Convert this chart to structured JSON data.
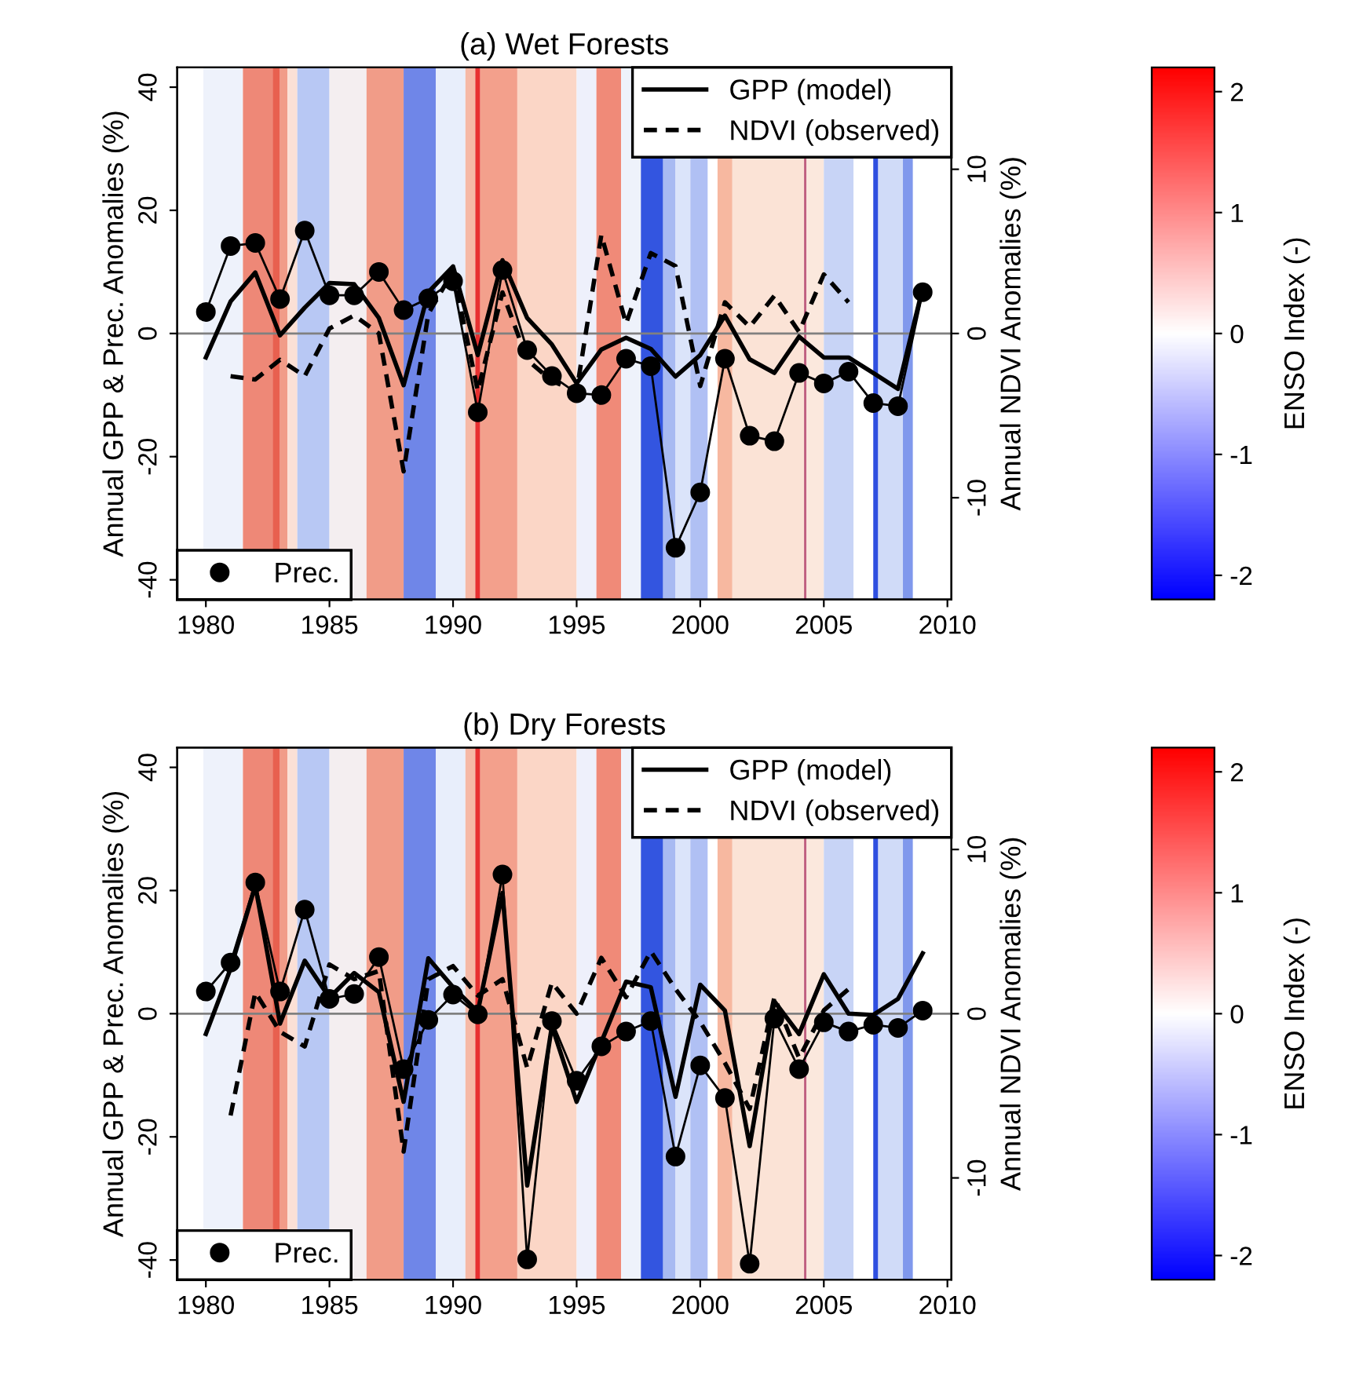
{
  "chart_data": [
    {
      "type": "line",
      "title": "(a) Wet Forests",
      "ylabel": "Annual GPP & Prec. Anomalies (%)",
      "y2label": "Annual NDVI Anomalies (%)",
      "clabel": "ENSO Index (-)",
      "xlim": [
        1978.84,
        2010.16
      ],
      "xticks": [
        1980,
        1985,
        1990,
        1995,
        2000,
        2005,
        2010
      ],
      "ylim": [
        -43.2,
        43.2
      ],
      "yticks": [
        -40,
        -20,
        0,
        20,
        40
      ],
      "y2lim": [
        -16.2,
        16.2
      ],
      "y2ticks": [
        -10,
        0,
        10
      ],
      "clim": [
        -2.2,
        2.2
      ],
      "cticks": [
        -2,
        -1,
        0,
        1,
        2
      ],
      "legend": "top right",
      "grid": false,
      "ref_lines": [
        {
          "axis": "y",
          "value": 0,
          "color": "#808080"
        }
      ],
      "bands": [
        {
          "axis": "x",
          "from": 1979.9,
          "to": 1981.5,
          "color": "#eef2fb"
        },
        {
          "axis": "x",
          "from": 1981.5,
          "to": 1982.7,
          "color": "#ee8877"
        },
        {
          "axis": "x",
          "from": 1982.7,
          "to": 1983.0,
          "color": "#e8604f"
        },
        {
          "axis": "x",
          "from": 1983.0,
          "to": 1983.3,
          "color": "#f19c88"
        },
        {
          "axis": "x",
          "from": 1983.3,
          "to": 1983.7,
          "color": "#fbe0d6"
        },
        {
          "axis": "x",
          "from": 1983.7,
          "to": 1985.0,
          "color": "#b8c8f4"
        },
        {
          "axis": "x",
          "from": 1985.0,
          "to": 1986.5,
          "color": "#f4eef0"
        },
        {
          "axis": "x",
          "from": 1986.5,
          "to": 1988.0,
          "color": "#f19c88"
        },
        {
          "axis": "x",
          "from": 1988.0,
          "to": 1989.3,
          "color": "#6f86e8"
        },
        {
          "axis": "x",
          "from": 1989.3,
          "to": 1990.5,
          "color": "#e8eefb"
        },
        {
          "axis": "x",
          "from": 1990.5,
          "to": 1990.9,
          "color": "#f6b9a6"
        },
        {
          "axis": "x",
          "from": 1990.9,
          "to": 1991.1,
          "color": "#e83030"
        },
        {
          "axis": "x",
          "from": 1991.1,
          "to": 1992.6,
          "color": "#f3a08c"
        },
        {
          "axis": "x",
          "from": 1992.6,
          "to": 1995.0,
          "color": "#fbd6c6"
        },
        {
          "axis": "x",
          "from": 1995.0,
          "to": 1995.8,
          "color": "#eef0fb"
        },
        {
          "axis": "x",
          "from": 1995.8,
          "to": 1996.8,
          "color": "#f08a78"
        },
        {
          "axis": "x",
          "from": 1996.8,
          "to": 1997.6,
          "color": "#eef2fb"
        },
        {
          "axis": "x",
          "from": 1997.6,
          "to": 1998.5,
          "color": "#3355e0"
        },
        {
          "axis": "x",
          "from": 1998.5,
          "to": 1999.0,
          "color": "#a8baf2"
        },
        {
          "axis": "x",
          "from": 1999.0,
          "to": 1999.6,
          "color": "#dbe4fa"
        },
        {
          "axis": "x",
          "from": 1999.6,
          "to": 2000.3,
          "color": "#b0c0f4"
        },
        {
          "axis": "x",
          "from": 2000.7,
          "to": 2001.3,
          "color": "#f7b8a0"
        },
        {
          "axis": "x",
          "from": 2001.3,
          "to": 2004.2,
          "color": "#fbe3d6"
        },
        {
          "axis": "x",
          "from": 2004.2,
          "to": 2004.3,
          "color": "#c06080"
        },
        {
          "axis": "x",
          "from": 2004.3,
          "to": 2005.0,
          "color": "#fbe8dd"
        },
        {
          "axis": "x",
          "from": 2005.0,
          "to": 2006.2,
          "color": "#c8d4f6"
        },
        {
          "axis": "x",
          "from": 2007.0,
          "to": 2007.2,
          "color": "#2f4fe0"
        },
        {
          "axis": "x",
          "from": 2007.2,
          "to": 2008.2,
          "color": "#d0dbf8"
        },
        {
          "axis": "x",
          "from": 2008.2,
          "to": 2008.6,
          "color": "#8098ec"
        }
      ],
      "series": [
        {
          "name": "GPP (model)",
          "color": "#000000",
          "line_style": "solid",
          "marker": "none",
          "x": [
            1980,
            1981,
            1982,
            1983,
            1984,
            1985,
            1986,
            1987,
            1988,
            1989,
            1990,
            1991,
            1992,
            1993,
            1994,
            1995,
            1996,
            1997,
            1998,
            1999,
            2000,
            2001,
            2002,
            2003,
            2004,
            2005,
            2006,
            2007,
            2008,
            2009
          ],
          "values": [
            -3.9,
            5.2,
            9.9,
            -0.3,
            4.2,
            8.2,
            8.0,
            2.5,
            -8.4,
            6.7,
            10.9,
            -3.5,
            11.9,
            2.5,
            -1.8,
            -8.1,
            -2.6,
            -0.7,
            -2.5,
            -7.0,
            -3.5,
            2.9,
            -4.2,
            -6.4,
            -0.5,
            -3.9,
            -3.9,
            -6.4,
            -9.0,
            7.4
          ]
        },
        {
          "name": "NDVI (observed)",
          "axis": "y2",
          "color": "#000000",
          "line_style": "dashed",
          "marker": "none",
          "x": [
            1981,
            1982,
            1983,
            1984,
            1985,
            1986,
            1987,
            1988,
            1989,
            1990,
            1991,
            1992,
            1993,
            1994,
            1995,
            1996,
            1997,
            1998,
            1999,
            2000,
            2001,
            2002,
            2003,
            2004,
            2005,
            2006
          ],
          "values": [
            -2.6,
            -2.8,
            -1.6,
            -2.6,
            0.3,
            1.1,
            0.0,
            -8.4,
            1.2,
            3.8,
            -3.5,
            2.5,
            -1.6,
            -2.9,
            -3.5,
            6.0,
            0.6,
            4.9,
            4.1,
            -3.2,
            1.9,
            0.4,
            2.3,
            0.1,
            3.6,
            1.9
          ]
        },
        {
          "name": "Prec.",
          "color": "#000000",
          "line_style": "solid",
          "marker": "circle",
          "x": [
            1980,
            1981,
            1982,
            1983,
            1984,
            1985,
            1986,
            1987,
            1988,
            1989,
            1990,
            1991,
            1992,
            1993,
            1994,
            1995,
            1996,
            1997,
            1998,
            1999,
            2000,
            2001,
            2002,
            2003,
            2004,
            2005,
            2006,
            2007,
            2008,
            2009
          ],
          "values": [
            3.5,
            14.2,
            14.7,
            5.6,
            16.7,
            6.2,
            6.2,
            10.0,
            3.8,
            5.7,
            8.5,
            -12.8,
            10.3,
            -2.7,
            -6.9,
            -9.7,
            -10.0,
            -4.1,
            -5.3,
            -34.8,
            -25.8,
            -4.1,
            -16.6,
            -17.5,
            -6.4,
            -8.1,
            -6.2,
            -11.3,
            -11.8,
            6.7
          ]
        }
      ]
    },
    {
      "type": "line",
      "title": "(b) Dry Forests",
      "ylabel": "Annual GPP & Prec. Anomalies (%)",
      "y2label": "Annual NDVI Anomalies (%)",
      "clabel": "ENSO Index (-)",
      "xlim": [
        1978.84,
        2010.16
      ],
      "xticks": [
        1980,
        1985,
        1990,
        1995,
        2000,
        2005,
        2010
      ],
      "ylim": [
        -43.2,
        43.2
      ],
      "yticks": [
        -40,
        -20,
        0,
        20,
        40
      ],
      "y2lim": [
        -16.2,
        16.2
      ],
      "y2ticks": [
        -10,
        0,
        10
      ],
      "clim": [
        -2.2,
        2.2
      ],
      "cticks": [
        -2,
        -1,
        0,
        1,
        2
      ],
      "legend": "top right",
      "grid": false,
      "ref_lines": [
        {
          "axis": "y",
          "value": 0,
          "color": "#808080"
        }
      ],
      "bands": [
        {
          "axis": "x",
          "from": 1979.9,
          "to": 1981.5,
          "color": "#eef2fb"
        },
        {
          "axis": "x",
          "from": 1981.5,
          "to": 1982.7,
          "color": "#ee8877"
        },
        {
          "axis": "x",
          "from": 1982.7,
          "to": 1983.0,
          "color": "#e8604f"
        },
        {
          "axis": "x",
          "from": 1983.0,
          "to": 1983.3,
          "color": "#f19c88"
        },
        {
          "axis": "x",
          "from": 1983.3,
          "to": 1983.7,
          "color": "#fbe0d6"
        },
        {
          "axis": "x",
          "from": 1983.7,
          "to": 1985.0,
          "color": "#b8c8f4"
        },
        {
          "axis": "x",
          "from": 1985.0,
          "to": 1986.5,
          "color": "#f4eef0"
        },
        {
          "axis": "x",
          "from": 1986.5,
          "to": 1988.0,
          "color": "#f19c88"
        },
        {
          "axis": "x",
          "from": 1988.0,
          "to": 1989.3,
          "color": "#6f86e8"
        },
        {
          "axis": "x",
          "from": 1989.3,
          "to": 1990.5,
          "color": "#e8eefb"
        },
        {
          "axis": "x",
          "from": 1990.5,
          "to": 1990.9,
          "color": "#f6b9a6"
        },
        {
          "axis": "x",
          "from": 1990.9,
          "to": 1991.1,
          "color": "#e83030"
        },
        {
          "axis": "x",
          "from": 1991.1,
          "to": 1992.6,
          "color": "#f3a08c"
        },
        {
          "axis": "x",
          "from": 1992.6,
          "to": 1995.0,
          "color": "#fbd6c6"
        },
        {
          "axis": "x",
          "from": 1995.0,
          "to": 1995.8,
          "color": "#eef0fb"
        },
        {
          "axis": "x",
          "from": 1995.8,
          "to": 1996.8,
          "color": "#f08a78"
        },
        {
          "axis": "x",
          "from": 1996.8,
          "to": 1997.6,
          "color": "#eef2fb"
        },
        {
          "axis": "x",
          "from": 1997.6,
          "to": 1998.5,
          "color": "#3355e0"
        },
        {
          "axis": "x",
          "from": 1998.5,
          "to": 1999.0,
          "color": "#a8baf2"
        },
        {
          "axis": "x",
          "from": 1999.0,
          "to": 1999.6,
          "color": "#dbe4fa"
        },
        {
          "axis": "x",
          "from": 1999.6,
          "to": 2000.3,
          "color": "#b0c0f4"
        },
        {
          "axis": "x",
          "from": 2000.7,
          "to": 2001.3,
          "color": "#f7b8a0"
        },
        {
          "axis": "x",
          "from": 2001.3,
          "to": 2004.2,
          "color": "#fbe3d6"
        },
        {
          "axis": "x",
          "from": 2004.2,
          "to": 2004.3,
          "color": "#c06080"
        },
        {
          "axis": "x",
          "from": 2004.3,
          "to": 2005.0,
          "color": "#fbe8dd"
        },
        {
          "axis": "x",
          "from": 2005.0,
          "to": 2006.2,
          "color": "#c8d4f6"
        },
        {
          "axis": "x",
          "from": 2007.0,
          "to": 2007.2,
          "color": "#2f4fe0"
        },
        {
          "axis": "x",
          "from": 2007.2,
          "to": 2008.2,
          "color": "#d0dbf8"
        },
        {
          "axis": "x",
          "from": 2008.2,
          "to": 2008.6,
          "color": "#8098ec"
        }
      ],
      "series": [
        {
          "name": "GPP (model)",
          "color": "#000000",
          "line_style": "solid",
          "marker": "none",
          "x": [
            1980,
            1981,
            1982,
            1983,
            1984,
            1985,
            1986,
            1987,
            1988,
            1989,
            1990,
            1991,
            1992,
            1993,
            1994,
            1995,
            1996,
            1997,
            1998,
            1999,
            2000,
            2001,
            2002,
            2003,
            2004,
            2005,
            2006,
            2007,
            2008,
            2009
          ],
          "values": [
            -3.3,
            7.3,
            20.8,
            -1.6,
            8.6,
            2.6,
            6.6,
            3.5,
            -14.3,
            9.0,
            4.3,
            0.3,
            19.6,
            -27.9,
            -2.0,
            -14.3,
            -4.6,
            5.2,
            4.3,
            -13.5,
            4.7,
            0.5,
            -21.5,
            2.0,
            -3.3,
            6.4,
            0.0,
            -0.2,
            2.4,
            9.8
          ]
        },
        {
          "name": "NDVI (observed)",
          "axis": "y2",
          "color": "#000000",
          "line_style": "dashed",
          "marker": "none",
          "x": [
            1981,
            1982,
            1983,
            1984,
            1985,
            1986,
            1987,
            1988,
            1989,
            1990,
            1991,
            1992,
            1993,
            1994,
            1995,
            1996,
            1997,
            1998,
            1999,
            2000,
            2001,
            2002,
            2003,
            2004,
            2005,
            2006
          ],
          "values": [
            -6.2,
            1.3,
            -1.1,
            -2.0,
            3.0,
            2.1,
            2.6,
            -8.4,
            2.1,
            2.9,
            1.1,
            2.1,
            -3.3,
            1.9,
            0.0,
            3.4,
            1.0,
            3.8,
            1.5,
            -0.5,
            -3.0,
            -5.8,
            1.0,
            -2.7,
            0.2,
            1.5
          ]
        },
        {
          "name": "Prec.",
          "color": "#000000",
          "line_style": "solid",
          "marker": "circle",
          "x": [
            1980,
            1981,
            1982,
            1983,
            1984,
            1985,
            1986,
            1987,
            1988,
            1989,
            1990,
            1991,
            1992,
            1993,
            1994,
            1995,
            1996,
            1997,
            1998,
            1999,
            2000,
            2001,
            2002,
            2003,
            2004,
            2005,
            2006,
            2007,
            2008,
            2009
          ],
          "values": [
            3.6,
            8.3,
            21.3,
            3.6,
            16.9,
            2.4,
            3.2,
            9.2,
            -9.0,
            -1.0,
            3.1,
            -0.1,
            22.6,
            -39.9,
            -1.2,
            -10.9,
            -5.3,
            -2.9,
            -1.2,
            -23.2,
            -8.4,
            -13.7,
            -40.6,
            -0.8,
            -9.0,
            -1.4,
            -2.9,
            -1.8,
            -2.3,
            0.5
          ]
        }
      ]
    }
  ]
}
